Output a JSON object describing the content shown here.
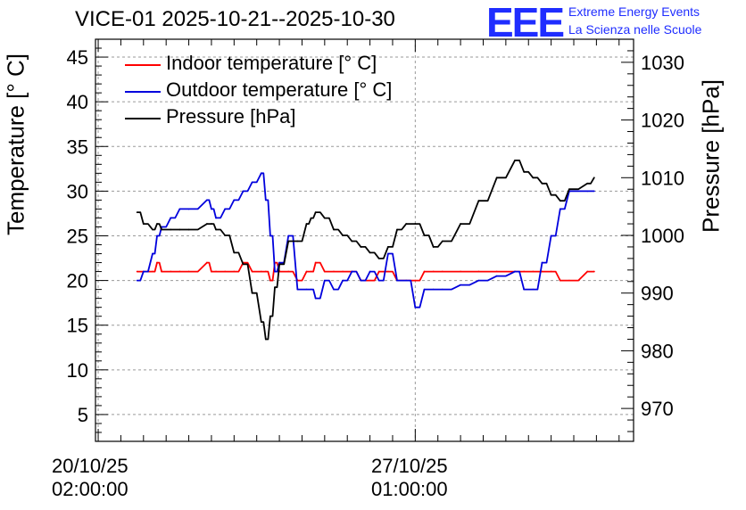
{
  "title": "VICE-01 2025-10-21--2025-10-30",
  "logo": {
    "text": "EEE",
    "line1": "Extreme Energy Events",
    "line2": "La Scienza nelle Scuole"
  },
  "colors": {
    "indoor": "#ff0000",
    "outdoor": "#0000dd",
    "pressure": "#000000",
    "grid": "#9a9a9a",
    "logo": "#1f2dff"
  },
  "chart_data": {
    "type": "line",
    "title": "VICE-01 2025-10-21--2025-10-30",
    "ylabel_left": "Temperature [° C]",
    "ylabel_right": "Pressure [hPa]",
    "ylim_left": [
      2,
      47
    ],
    "ylim_right": [
      964.3,
      1034
    ],
    "xlim_days": [
      -0.06,
      11.82
    ],
    "yticks_left": [
      "5",
      "10",
      "15",
      "20",
      "25",
      "30",
      "35",
      "40",
      "45"
    ],
    "yticks_right": [
      "970",
      "980",
      "990",
      "1000",
      "1010",
      "1020",
      "1030"
    ],
    "x_tick_labels": [
      {
        "day": 0,
        "line1": "20/10/25",
        "line2": "02:00:00"
      },
      {
        "day": 7,
        "line1": "27/10/25",
        "line2": "01:00:00"
      }
    ],
    "legend": [
      "Indoor temperature [° C]",
      "Outdoor temperature [° C]",
      "Pressure [hPa]"
    ],
    "x_days": [
      0.86,
      1.0,
      1.2,
      1.3,
      1.4,
      1.6,
      1.8,
      2.0,
      2.4,
      2.5,
      2.6,
      2.8,
      3.0,
      3.2,
      3.4,
      3.6,
      3.7,
      3.8,
      3.9,
      4.0,
      4.2,
      4.4,
      4.6,
      4.7,
      4.8,
      5.0,
      5.2,
      5.4,
      5.6,
      5.8,
      6.0,
      6.2,
      6.4,
      6.6,
      6.8,
      7.0,
      7.2,
      7.4,
      7.6,
      8.0,
      8.4,
      8.8,
      9.2,
      9.4,
      9.6,
      9.8,
      10.0,
      10.2,
      10.4,
      10.8,
      10.95
    ],
    "series": [
      {
        "name": "Indoor temperature [° C]",
        "axis": "left",
        "values": [
          21,
          21,
          21,
          22,
          21,
          21,
          21,
          21,
          22,
          21,
          21,
          21,
          21,
          22,
          21,
          21,
          21,
          20,
          22,
          21,
          21,
          20,
          21,
          21,
          22,
          21,
          21,
          21,
          21,
          20,
          20,
          21,
          21,
          20,
          20,
          20,
          21,
          21,
          21,
          21,
          21,
          21,
          21,
          21,
          21,
          21,
          21,
          20,
          20,
          21,
          21
        ]
      },
      {
        "name": "Outdoor temperature [° C]",
        "axis": "left",
        "values": [
          20,
          21,
          23,
          25,
          26,
          27,
          28,
          28,
          29,
          28,
          27,
          28,
          29,
          30,
          31,
          32,
          29,
          25,
          21,
          22,
          25,
          19,
          19,
          19,
          18,
          20,
          19,
          20,
          21,
          20,
          21,
          20,
          23,
          20,
          20,
          17,
          19,
          19,
          19,
          19.5,
          20,
          20.5,
          21,
          19,
          19,
          22,
          25,
          28,
          30,
          30,
          30
        ]
      },
      {
        "name": "Pressure [hPa]",
        "axis": "right",
        "values": [
          1004,
          1002,
          1001,
          1002,
          1001,
          1001,
          1001,
          1001,
          1002,
          1002,
          1001,
          1000,
          997,
          995,
          990,
          985,
          982,
          986,
          991,
          995,
          999,
          999,
          1002,
          1003,
          1004,
          1003,
          1001,
          1000,
          999,
          998,
          997,
          996,
          998,
          1001,
          1002,
          1002,
          1000,
          998,
          999,
          1002,
          1006,
          1010,
          1013,
          1011,
          1010,
          1009,
          1007,
          1006,
          1008,
          1009,
          1010
        ]
      }
    ]
  }
}
